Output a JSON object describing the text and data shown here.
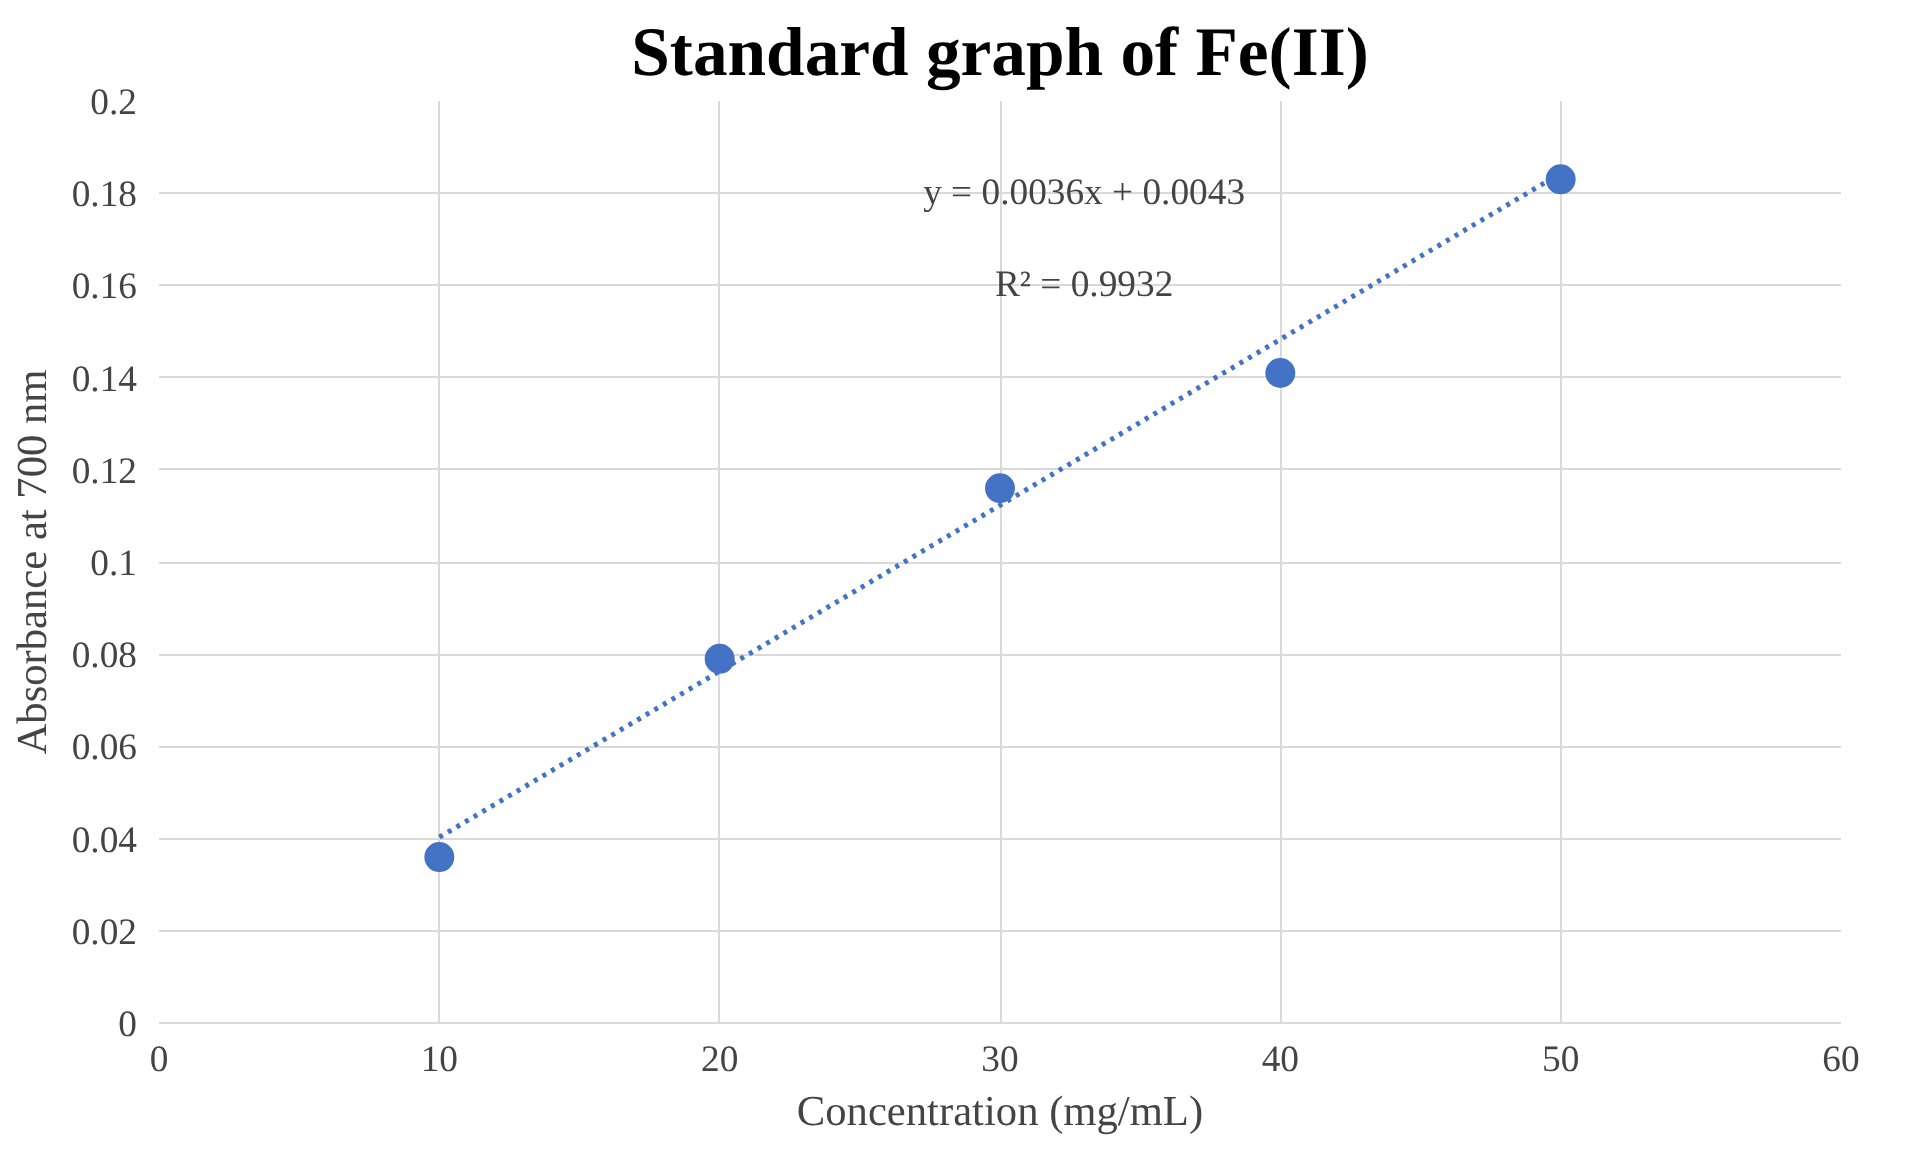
{
  "chart_data": {
    "type": "scatter",
    "title": "Standard graph of Fe(II)",
    "xlabel": "Concentration (mg/mL)",
    "ylabel": "Absorbance at 700 nm",
    "x": [
      10,
      20,
      30,
      40,
      50
    ],
    "series": [
      {
        "color": "#4472c4",
        "values": [
          0.036,
          0.079,
          0.116,
          0.141,
          0.183
        ],
        "marker": "circle"
      },
      {
        "type": "line",
        "color": "#4472c4",
        "x": [
          10,
          50
        ],
        "values": [
          0.0403,
          0.1843
        ],
        "line_style": "dotted",
        "marker": "none"
      }
    ],
    "annotations": [
      "y = 0.0036x + 0.0043",
      "R² = 0.9932"
    ],
    "xlim": [
      0,
      60
    ],
    "xticks": [
      0,
      10,
      20,
      30,
      40,
      50,
      60
    ],
    "ylim": [
      0,
      0.2
    ],
    "yticks": [
      0,
      0.02,
      0.04,
      0.06,
      0.08,
      0.1,
      0.12,
      0.14,
      0.16,
      0.18,
      0.2
    ],
    "grid": true
  }
}
